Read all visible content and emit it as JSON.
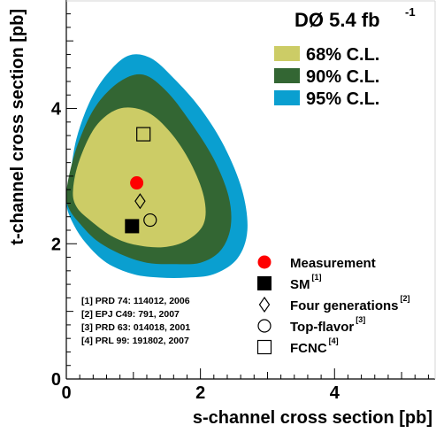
{
  "chart_data": {
    "type": "contour",
    "title": "DØ 5.4 fb",
    "title_superscript": "-1",
    "xlabel": "s-channel cross section [pb]",
    "ylabel": "t-channel cross section [pb]",
    "xlim": [
      0,
      5.5
    ],
    "ylim": [
      0,
      5.5
    ],
    "xticks": [
      0,
      2,
      4
    ],
    "yticks": [
      0,
      2,
      4
    ],
    "grid": false,
    "legend_placement": "top-right",
    "regions": [
      {
        "name": "95% C.L.",
        "color": "#0a9fd0",
        "boundary": [
          [
            0.0,
            2.6
          ],
          [
            0.05,
            2.95
          ],
          [
            0.15,
            3.55
          ],
          [
            0.35,
            4.1
          ],
          [
            0.6,
            4.5
          ],
          [
            0.92,
            4.78
          ],
          [
            1.25,
            4.75
          ],
          [
            1.6,
            4.45
          ],
          [
            2.0,
            4.0
          ],
          [
            2.35,
            3.45
          ],
          [
            2.62,
            2.8
          ],
          [
            2.7,
            2.2
          ],
          [
            2.55,
            1.78
          ],
          [
            2.2,
            1.55
          ],
          [
            1.8,
            1.5
          ],
          [
            1.4,
            1.5
          ],
          [
            1.0,
            1.55
          ],
          [
            0.6,
            1.72
          ],
          [
            0.3,
            2.0
          ],
          [
            0.1,
            2.3
          ]
        ]
      },
      {
        "name": "90% C.L.",
        "color": "#336633",
        "boundary": [
          [
            0.0,
            2.7
          ],
          [
            0.05,
            3.05
          ],
          [
            0.2,
            3.55
          ],
          [
            0.45,
            4.05
          ],
          [
            0.8,
            4.4
          ],
          [
            1.15,
            4.5
          ],
          [
            1.5,
            4.25
          ],
          [
            1.85,
            3.8
          ],
          [
            2.2,
            3.25
          ],
          [
            2.42,
            2.7
          ],
          [
            2.45,
            2.25
          ],
          [
            2.3,
            1.9
          ],
          [
            2.0,
            1.72
          ],
          [
            1.6,
            1.7
          ],
          [
            1.2,
            1.72
          ],
          [
            0.8,
            1.85
          ],
          [
            0.45,
            2.05
          ],
          [
            0.2,
            2.3
          ],
          [
            0.05,
            2.5
          ]
        ]
      },
      {
        "name": "68% C.L.",
        "color": "#cccc66",
        "boundary": [
          [
            0.1,
            2.8
          ],
          [
            0.2,
            3.25
          ],
          [
            0.45,
            3.75
          ],
          [
            0.8,
            4.0
          ],
          [
            1.2,
            3.95
          ],
          [
            1.55,
            3.65
          ],
          [
            1.85,
            3.2
          ],
          [
            2.05,
            2.7
          ],
          [
            2.05,
            2.3
          ],
          [
            1.8,
            2.05
          ],
          [
            1.45,
            1.95
          ],
          [
            1.05,
            1.98
          ],
          [
            0.7,
            2.1
          ],
          [
            0.35,
            2.35
          ],
          [
            0.15,
            2.55
          ]
        ]
      }
    ],
    "points": [
      {
        "name": "Measurement",
        "x": 1.05,
        "y": 2.9,
        "marker": "filled-circle",
        "color": "#ff0000"
      },
      {
        "name": "SM",
        "ref": "[1]",
        "x": 0.98,
        "y": 2.26,
        "marker": "filled-square",
        "color": "#000000"
      },
      {
        "name": "Four generations",
        "ref": "[2]",
        "x": 1.1,
        "y": 2.63,
        "marker": "open-diamond",
        "color": "#000000"
      },
      {
        "name": "Top-flavor",
        "ref": "[3]",
        "x": 1.25,
        "y": 2.35,
        "marker": "open-circle",
        "color": "#000000"
      },
      {
        "name": "FCNC",
        "ref": "[4]",
        "x": 1.15,
        "y": 3.62,
        "marker": "open-square",
        "color": "#000000"
      }
    ],
    "references": [
      "[1] PRD 74: 114012, 2006",
      "[2] EPJ C49: 791, 2007",
      "[3] PRD 63: 014018, 2001",
      "[4] PRL 99: 191802, 2007"
    ]
  }
}
